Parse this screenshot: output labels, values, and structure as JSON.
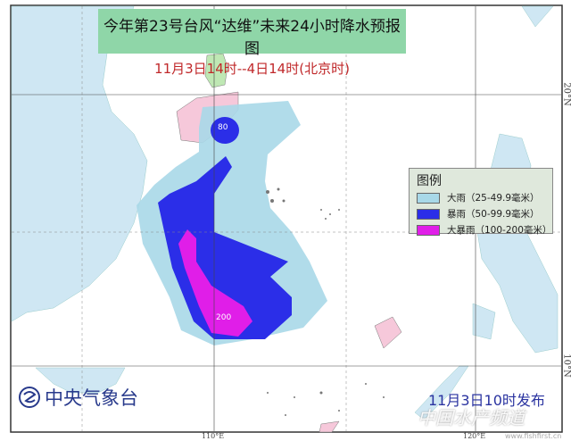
{
  "title": {
    "line1": "今年第23号台风“达维”未来24小时降水预报图",
    "line2": "11月3日14时--4日14时(北京时)"
  },
  "legend": {
    "title": "图例",
    "items": [
      {
        "label": "大雨（25-49.9毫米）",
        "color": "#a8d8e8"
      },
      {
        "label": "暴雨（50-99.9毫米）",
        "color": "#2b2ee8"
      },
      {
        "label": "大暴雨（100-200毫米）",
        "color": "#e01ee8"
      }
    ]
  },
  "contour_labels": {
    "small": "80",
    "large": "200"
  },
  "axes": {
    "lon1": "110°E",
    "lon2": "120°E",
    "lat1": "20°N",
    "lat2": "10°N"
  },
  "publisher": "中央气象台",
  "issue_time": "11月3日10时发布",
  "watermark": {
    "text": "中国水产频道",
    "url": "www.fishfirst.cn"
  },
  "colors": {
    "land": "#cfe7f3",
    "hainan": "#f6c8da",
    "guangdong": "#bfe8b4",
    "title_bg": "#8fd6a8"
  }
}
